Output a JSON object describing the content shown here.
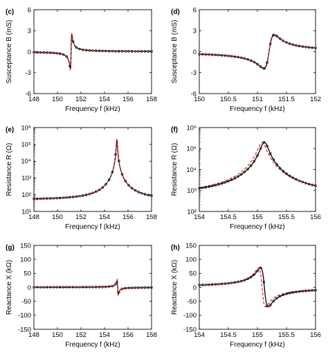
{
  "colors": {
    "measured": "#000000",
    "model": "#e02020"
  },
  "chart_data": [
    {
      "panel": "(c)",
      "type": "line",
      "xlabel": "Frequency f (kHz)",
      "ylabel": "Susceptance B (mS)",
      "xlim": [
        148,
        158
      ],
      "ylim": [
        -6,
        6
      ],
      "xticks": [
        148,
        150,
        152,
        154,
        156,
        158
      ],
      "yticks": [
        -6,
        -3,
        0,
        3,
        6
      ],
      "yscale": "linear",
      "grid": false,
      "model": "sus",
      "params": {
        "f0": 151.16,
        "g": 0.055,
        "A": 0.275,
        "off": 0
      }
    },
    {
      "panel": "(d)",
      "type": "line",
      "xlabel": "Frequency f (kHz)",
      "ylabel": "Susceptance B (mS)",
      "xlim": [
        150,
        152
      ],
      "ylim": [
        -6,
        6
      ],
      "xticks": [
        150,
        150.5,
        151,
        151.5,
        152
      ],
      "yticks": [
        -6,
        -3,
        0,
        3,
        6
      ],
      "yscale": "linear",
      "grid": false,
      "model": "sus",
      "params": {
        "f0": 151.2,
        "g": 0.09,
        "A": 0.43,
        "off": 0
      },
      "model_params": {
        "f0": 151.2,
        "g": 0.085,
        "A": 0.43,
        "off": 0
      }
    },
    {
      "panel": "(e)",
      "type": "line",
      "xlabel": "Frequency f (kHz)",
      "ylabel": "Resistance R (Ω)",
      "xlim": [
        148,
        158
      ],
      "ylim": [
        1,
        6
      ],
      "xticks": [
        148,
        150,
        152,
        154,
        156,
        158
      ],
      "yticks": [
        1,
        2,
        3,
        4,
        5,
        6
      ],
      "ytick_labels": [
        "10¹",
        "10²",
        "10³",
        "10⁴",
        "10⁵",
        "10⁶"
      ],
      "yscale": "log",
      "grid": false,
      "model": "res",
      "params": {
        "f0": 155.05,
        "g": 0.04,
        "Rp": 200000,
        "base": 50
      }
    },
    {
      "panel": "(f)",
      "type": "line",
      "xlabel": "Frequency f (kHz)",
      "ylabel": "Resistance R (Ω)",
      "xlim": [
        154,
        156
      ],
      "ylim": [
        2,
        6
      ],
      "xticks": [
        154,
        154.5,
        155,
        155.5,
        156
      ],
      "yticks": [
        2,
        3,
        4,
        5,
        6
      ],
      "ytick_labels": [
        "10²",
        "10³",
        "10⁴",
        "10⁵",
        "10⁶"
      ],
      "yscale": "log",
      "grid": false,
      "model": "res",
      "params": {
        "f0": 155.12,
        "g": 0.065,
        "Rp": 200000,
        "base": 600
      },
      "model_params": {
        "f0": 155.08,
        "g": 0.07,
        "Rp": 190000,
        "base": 600
      }
    },
    {
      "panel": "(g)",
      "type": "line",
      "xlabel": "Frequency f (kHz)",
      "ylabel": "Reactance X (kΩ)",
      "xlim": [
        148,
        158
      ],
      "ylim": [
        -150,
        150
      ],
      "xticks": [
        148,
        150,
        152,
        154,
        156,
        158
      ],
      "yticks": [
        -150,
        -100,
        -50,
        0,
        50,
        100,
        150
      ],
      "yscale": "linear",
      "grid": false,
      "model": "rea",
      "params": {
        "f0": 155.12,
        "g": 0.04,
        "A": 0.26,
        "Rp": 200000,
        "off": 0
      }
    },
    {
      "panel": "(h)",
      "type": "line",
      "xlabel": "Frequency f (kHz)",
      "ylabel": "Reactance X (kΩ)",
      "xlim": [
        154,
        156
      ],
      "ylim": [
        -150,
        150
      ],
      "xticks": [
        154,
        154.5,
        155,
        155.5,
        156
      ],
      "yticks": [
        -150,
        -100,
        -50,
        0,
        50,
        100,
        150
      ],
      "yscale": "linear",
      "grid": false,
      "model": "rea",
      "params": {
        "f0": 155.12,
        "g": 0.065,
        "A": 0.7,
        "Rp": 200000,
        "off": 0
      },
      "model_params": {
        "f0": 155.08,
        "g": 0.06,
        "A": 0.7,
        "Rp": 200000,
        "off": 0
      }
    }
  ]
}
